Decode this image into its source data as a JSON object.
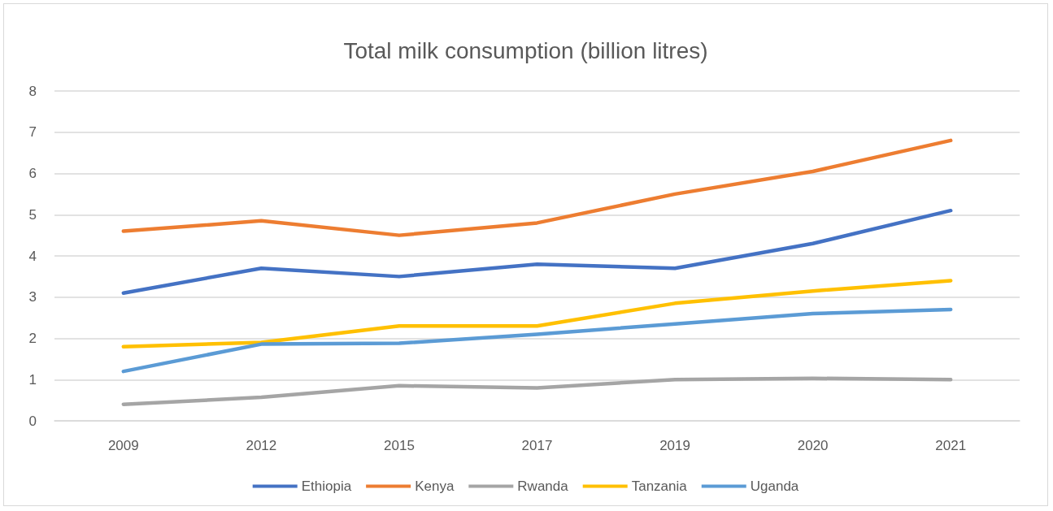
{
  "chart_data": {
    "type": "line",
    "title": "Total milk consumption (billion litres)",
    "categories": [
      "2009",
      "2012",
      "2015",
      "2017",
      "2019",
      "2020",
      "2021"
    ],
    "series": [
      {
        "name": "Ethiopia",
        "color": "#4472c4",
        "values": [
          3.1,
          3.7,
          3.5,
          3.8,
          3.7,
          4.3,
          5.1
        ]
      },
      {
        "name": "Kenya",
        "color": "#ed7d31",
        "values": [
          4.6,
          4.85,
          4.5,
          4.8,
          5.5,
          6.05,
          6.8
        ]
      },
      {
        "name": "Rwanda",
        "color": "#a5a5a5",
        "values": [
          0.4,
          0.57,
          0.85,
          0.8,
          1.0,
          1.03,
          1.0
        ]
      },
      {
        "name": "Tanzania",
        "color": "#ffc000",
        "values": [
          1.8,
          1.9,
          2.3,
          2.3,
          2.85,
          3.15,
          3.4
        ]
      },
      {
        "name": "Uganda",
        "color": "#5b9bd5",
        "values": [
          1.2,
          1.86,
          1.88,
          2.1,
          2.35,
          2.6,
          2.7
        ]
      }
    ],
    "ylim": [
      0,
      8
    ],
    "yticks": [
      0,
      1,
      2,
      3,
      4,
      5,
      6,
      7,
      8
    ],
    "grid": "y",
    "legend": "bottom",
    "marker": "none",
    "line_style": "solid"
  }
}
